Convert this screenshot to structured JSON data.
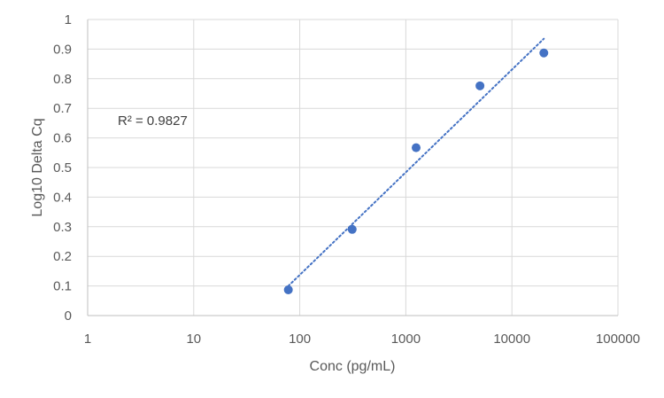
{
  "chart_data": {
    "type": "scatter",
    "title": "",
    "xlabel": "Conc (pg/mL)",
    "ylabel": "Log10 Delta Cq",
    "x_scale": "log",
    "xlim": [
      1,
      100000
    ],
    "ylim": [
      0,
      1
    ],
    "x_ticks": [
      "1",
      "10",
      "100",
      "1000",
      "10000",
      "100000"
    ],
    "y_ticks": [
      "0",
      "0.1",
      "0.2",
      "0.3",
      "0.4",
      "0.5",
      "0.6",
      "0.7",
      "0.8",
      "0.9",
      "1"
    ],
    "grid": true,
    "legend": "none",
    "series": [
      {
        "color": "#4472C4",
        "points": [
          {
            "x": 78,
            "y": 0.087
          },
          {
            "x": 312,
            "y": 0.291
          },
          {
            "x": 1250,
            "y": 0.567
          },
          {
            "x": 5000,
            "y": 0.776
          },
          {
            "x": 20000,
            "y": 0.887
          }
        ]
      }
    ],
    "trendline": {
      "type": "logarithmic",
      "style": "dotted",
      "color": "#4472C4",
      "x_start": 78,
      "x_end": 20000,
      "y_start": 0.1,
      "y_end": 0.935
    },
    "annotation": "R² = 0.9827"
  }
}
